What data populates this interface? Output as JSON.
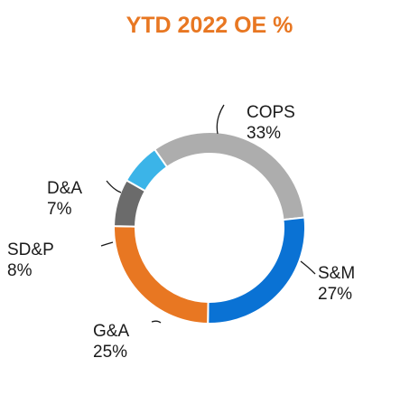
{
  "chart_data": {
    "type": "pie",
    "donut": true,
    "title": "YTD 2022 OE %",
    "title_color": "#E87722",
    "slices": [
      {
        "label": "COPS",
        "value": 33,
        "value_label": "33%",
        "color": "#ADADAD"
      },
      {
        "label": "S&M",
        "value": 27,
        "value_label": "27%",
        "color": "#0A72D4"
      },
      {
        "label": "G&A",
        "value": 25,
        "value_label": "25%",
        "color": "#E87722"
      },
      {
        "label": "SD&P",
        "value": 8,
        "value_label": "8%",
        "color": "#6B6B6B"
      },
      {
        "label": "D&A",
        "value": 7,
        "value_label": "7%",
        "color": "#3BB4E8"
      }
    ],
    "legend": "none"
  }
}
